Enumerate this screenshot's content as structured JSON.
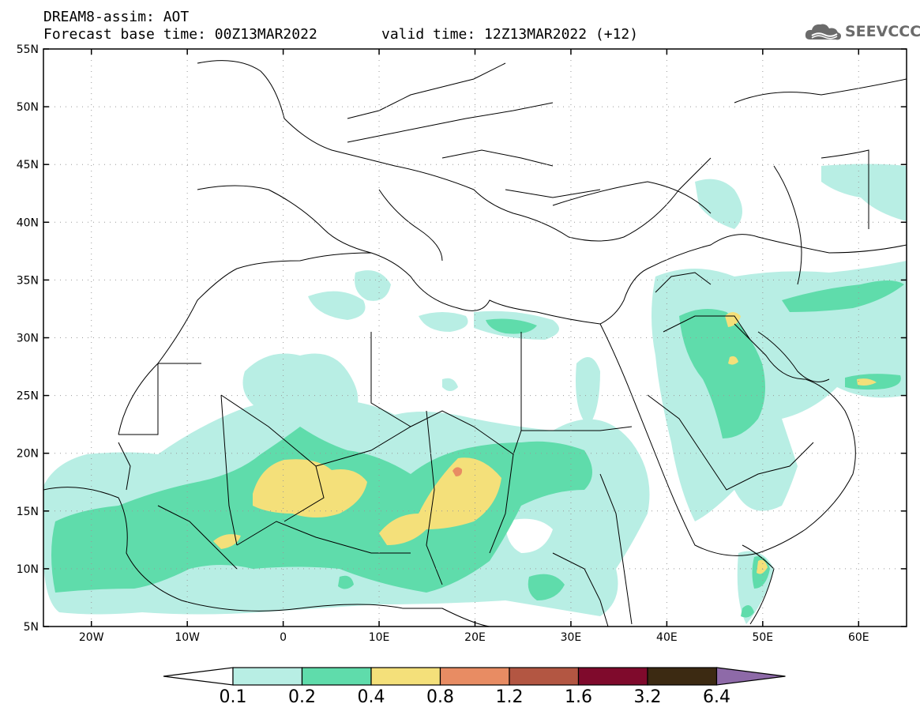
{
  "header": {
    "model_line": "DREAM8-assim: AOT",
    "base_time": "Forecast base time: 00Z13MAR2022",
    "valid_time": "valid time: 12Z13MAR2022 (+12)"
  },
  "logo": {
    "text": "SEEVCCC",
    "icon": "cloud-logo-icon"
  },
  "map": {
    "lat_labels": [
      "55N",
      "50N",
      "45N",
      "40N",
      "35N",
      "30N",
      "25N",
      "20N",
      "15N",
      "10N",
      "5N"
    ],
    "lon_labels": [
      "20W",
      "10W",
      "0",
      "10E",
      "20E",
      "30E",
      "40E",
      "50E",
      "60E"
    ],
    "lon_range": [
      -25,
      65
    ],
    "lat_range": [
      5,
      55
    ]
  },
  "colorbar": {
    "labels": [
      "0.1",
      "0.2",
      "0.4",
      "0.8",
      "1.2",
      "1.6",
      "3.2",
      "6.4"
    ],
    "colors": [
      "#ffffff",
      "#b8eee4",
      "#5fdcab",
      "#f4e07a",
      "#e88c63",
      "#b35642",
      "#7f0a2c",
      "#3c2a12",
      "#8e6aa8"
    ]
  }
}
